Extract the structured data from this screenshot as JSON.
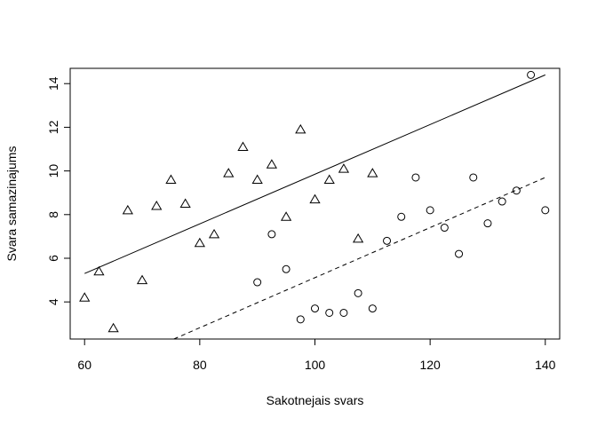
{
  "chart_data": {
    "type": "scatter",
    "title": "",
    "xlabel": "Sakotnejais svars",
    "ylabel": "Svara samazinajums",
    "xlim": [
      57.5,
      142.5
    ],
    "ylim": [
      2.3,
      14.7
    ],
    "xticks": [
      60,
      80,
      100,
      120,
      140
    ],
    "yticks": [
      4,
      6,
      8,
      10,
      12,
      14
    ],
    "grid": false,
    "legend": "none",
    "series": [
      {
        "marker": "triangle",
        "points": [
          [
            60,
            4.2
          ],
          [
            62.5,
            5.4
          ],
          [
            65,
            2.8
          ],
          [
            67.5,
            8.2
          ],
          [
            70,
            5.0
          ],
          [
            72.5,
            8.4
          ],
          [
            75,
            9.6
          ],
          [
            77.5,
            8.5
          ],
          [
            80,
            6.7
          ],
          [
            82.5,
            7.1
          ],
          [
            85,
            9.9
          ],
          [
            87.5,
            11.1
          ],
          [
            90,
            9.6
          ],
          [
            92.5,
            10.3
          ],
          [
            95,
            7.9
          ],
          [
            97.5,
            11.9
          ],
          [
            100,
            8.7
          ],
          [
            102.5,
            9.6
          ],
          [
            105,
            10.1
          ],
          [
            107.5,
            6.9
          ],
          [
            110,
            9.9
          ]
        ],
        "fit": {
          "x": [
            60,
            140
          ],
          "y": [
            5.3,
            14.4
          ],
          "linestyle": "solid"
        }
      },
      {
        "marker": "circle",
        "points": [
          [
            90,
            4.9
          ],
          [
            92.5,
            7.1
          ],
          [
            95,
            5.5
          ],
          [
            97.5,
            3.2
          ],
          [
            100,
            3.7
          ],
          [
            102.5,
            3.5
          ],
          [
            105,
            3.5
          ],
          [
            107.5,
            4.4
          ],
          [
            110,
            3.7
          ],
          [
            112.5,
            6.8
          ],
          [
            115,
            7.9
          ],
          [
            117.5,
            9.7
          ],
          [
            120,
            8.2
          ],
          [
            122.5,
            7.4
          ],
          [
            125,
            6.2
          ],
          [
            127.5,
            9.7
          ],
          [
            130,
            7.6
          ],
          [
            132.5,
            8.6
          ],
          [
            135,
            9.1
          ],
          [
            137.5,
            14.4
          ],
          [
            140,
            8.2
          ]
        ],
        "fit": {
          "x": [
            75.5,
            140
          ],
          "y": [
            2.3,
            9.7
          ],
          "linestyle": "dashed"
        }
      }
    ]
  }
}
